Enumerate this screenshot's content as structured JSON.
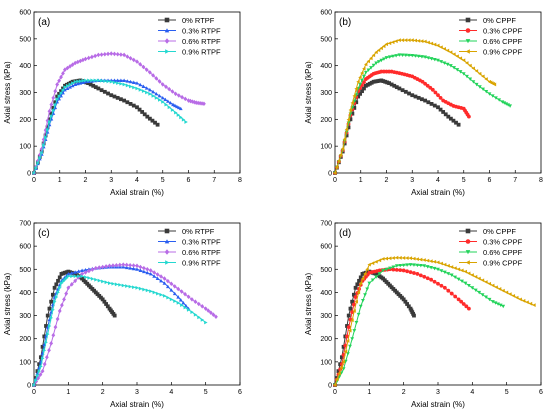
{
  "colors": {
    "black": "#3a3a3a",
    "red": "#ff2b2b",
    "blue": "#2a5ef0",
    "green": "#22d35a",
    "violet": "#b86ce6",
    "cyan": "#25d8d0",
    "gold": "#d9a400"
  },
  "chart_data": [
    {
      "type": "line",
      "label": "(a)",
      "xlabel": "Axial strain (%)",
      "ylabel": "Axial stress (kPa)",
      "xlim": [
        0,
        8
      ],
      "ylim": [
        0,
        600
      ],
      "xticks": [
        0,
        1,
        2,
        3,
        4,
        5,
        6,
        7,
        8
      ],
      "yticks": [
        0,
        100,
        200,
        300,
        400,
        500,
        600
      ],
      "grid": false,
      "legend_position": "top-right",
      "series": [
        {
          "name": "0%   RTPF",
          "color": "#3a3a3a",
          "marker": "square",
          "x": [
            0,
            0.3,
            0.6,
            0.9,
            1.2,
            1.5,
            1.8,
            2.1,
            2.5,
            3.0,
            3.5,
            4.0,
            4.4,
            4.8
          ],
          "y": [
            0,
            80,
            200,
            285,
            325,
            340,
            345,
            335,
            315,
            290,
            270,
            245,
            210,
            180
          ]
        },
        {
          "name": "0.3% RTPF",
          "color": "#2a5ef0",
          "marker": "triangle",
          "x": [
            0,
            0.3,
            0.6,
            0.9,
            1.2,
            1.6,
            2.0,
            2.5,
            3.0,
            3.5,
            4.0,
            4.5,
            5.0,
            5.4,
            5.7
          ],
          "y": [
            0,
            70,
            180,
            265,
            310,
            330,
            340,
            345,
            345,
            345,
            335,
            310,
            280,
            255,
            240
          ]
        },
        {
          "name": "0.6% RTPF",
          "color": "#b86ce6",
          "marker": "diamond",
          "x": [
            0,
            0.3,
            0.6,
            0.9,
            1.2,
            1.6,
            2.0,
            2.5,
            3.0,
            3.5,
            4.0,
            4.5,
            5.0,
            5.5,
            6.0,
            6.3,
            6.6
          ],
          "y": [
            0,
            90,
            230,
            330,
            385,
            410,
            425,
            440,
            445,
            440,
            415,
            375,
            330,
            295,
            270,
            262,
            258
          ]
        },
        {
          "name": "0.9% RTPF",
          "color": "#25d8d0",
          "marker": "triangle-right",
          "x": [
            0,
            0.3,
            0.6,
            0.9,
            1.2,
            1.6,
            2.0,
            2.5,
            3.0,
            3.5,
            4.0,
            4.5,
            5.0,
            5.5,
            5.9
          ],
          "y": [
            0,
            75,
            190,
            275,
            320,
            340,
            345,
            345,
            340,
            330,
            315,
            295,
            265,
            225,
            190
          ]
        }
      ]
    },
    {
      "type": "line",
      "label": "(b)",
      "xlabel": "Axial strain (%)",
      "ylabel": "Axial stress (kPa)",
      "xlim": [
        0,
        8
      ],
      "ylim": [
        0,
        600
      ],
      "xticks": [
        0,
        1,
        2,
        3,
        4,
        5,
        6,
        7,
        8
      ],
      "yticks": [
        0,
        100,
        200,
        300,
        400,
        500,
        600
      ],
      "grid": false,
      "legend_position": "top-right",
      "series": [
        {
          "name": "0%   CPPF",
          "color": "#3a3a3a",
          "marker": "square",
          "x": [
            0,
            0.3,
            0.6,
            0.9,
            1.2,
            1.5,
            1.8,
            2.1,
            2.5,
            3.0,
            3.5,
            4.0,
            4.4,
            4.8
          ],
          "y": [
            0,
            80,
            200,
            285,
            325,
            340,
            345,
            335,
            315,
            290,
            270,
            245,
            210,
            180
          ]
        },
        {
          "name": "0.3% CPPF",
          "color": "#ff2b2b",
          "marker": "circle",
          "x": [
            0,
            0.3,
            0.6,
            0.9,
            1.2,
            1.5,
            1.8,
            2.2,
            2.6,
            3.0,
            3.4,
            3.8,
            4.2,
            4.6,
            5.0,
            5.2
          ],
          "y": [
            0,
            85,
            215,
            305,
            350,
            370,
            378,
            378,
            370,
            360,
            340,
            310,
            270,
            250,
            240,
            210
          ]
        },
        {
          "name": "0.6% CPPF",
          "color": "#22d35a",
          "marker": "triangle-down",
          "x": [
            0,
            0.3,
            0.6,
            0.9,
            1.2,
            1.6,
            2.0,
            2.5,
            3.0,
            3.5,
            4.0,
            4.5,
            5.0,
            5.5,
            6.0,
            6.5,
            6.8
          ],
          "y": [
            0,
            85,
            220,
            315,
            375,
            410,
            430,
            440,
            438,
            432,
            420,
            400,
            370,
            330,
            295,
            265,
            250
          ]
        },
        {
          "name": "0.9% CPPF",
          "color": "#d9a400",
          "marker": "triangle-left",
          "x": [
            0,
            0.3,
            0.6,
            0.9,
            1.2,
            1.6,
            2.0,
            2.5,
            3.0,
            3.5,
            4.0,
            4.5,
            5.0,
            5.5,
            6.0,
            6.2
          ],
          "y": [
            0,
            90,
            235,
            340,
            405,
            450,
            480,
            495,
            495,
            490,
            475,
            450,
            420,
            380,
            340,
            330
          ]
        }
      ]
    },
    {
      "type": "line",
      "label": "(c)",
      "xlabel": "Axial strain (%)",
      "ylabel": "Axial stress (kPa)",
      "xlim": [
        0,
        6
      ],
      "ylim": [
        0,
        700
      ],
      "xticks": [
        0,
        1,
        2,
        3,
        4,
        5,
        6
      ],
      "yticks": [
        0,
        100,
        200,
        300,
        400,
        500,
        600,
        700
      ],
      "grid": false,
      "legend_position": "top-right",
      "series": [
        {
          "name": "0%   RTPF",
          "color": "#3a3a3a",
          "marker": "square",
          "x": [
            0,
            0.2,
            0.4,
            0.6,
            0.8,
            1.0,
            1.2,
            1.4,
            1.6,
            1.8,
            2.0,
            2.2,
            2.35
          ],
          "y": [
            0,
            120,
            300,
            420,
            480,
            490,
            480,
            460,
            430,
            400,
            370,
            330,
            300
          ]
        },
        {
          "name": "0.3% RTPF",
          "color": "#2a5ef0",
          "marker": "triangle",
          "x": [
            0,
            0.2,
            0.4,
            0.6,
            0.8,
            1.0,
            1.4,
            1.8,
            2.2,
            2.6,
            3.0,
            3.4,
            3.8,
            4.2,
            4.5
          ],
          "y": [
            0,
            100,
            250,
            380,
            450,
            480,
            495,
            505,
            510,
            510,
            500,
            480,
            440,
            380,
            330
          ]
        },
        {
          "name": "0.6% RTPF",
          "color": "#b86ce6",
          "marker": "diamond",
          "x": [
            0,
            0.25,
            0.5,
            0.75,
            1.0,
            1.4,
            1.8,
            2.2,
            2.6,
            3.0,
            3.4,
            3.8,
            4.2,
            4.6,
            5.0,
            5.3
          ],
          "y": [
            0,
            60,
            180,
            320,
            420,
            480,
            505,
            515,
            520,
            515,
            495,
            460,
            415,
            370,
            330,
            295
          ]
        },
        {
          "name": "0.9% RTPF",
          "color": "#25d8d0",
          "marker": "triangle-right",
          "x": [
            0,
            0.2,
            0.4,
            0.6,
            0.8,
            1.0,
            1.4,
            1.8,
            2.2,
            2.6,
            3.0,
            3.4,
            3.8,
            4.2,
            4.6,
            5.0
          ],
          "y": [
            0,
            80,
            220,
            360,
            440,
            470,
            470,
            455,
            440,
            430,
            420,
            405,
            385,
            355,
            315,
            270
          ]
        }
      ]
    },
    {
      "type": "line",
      "label": "(d)",
      "xlabel": "Axial strain (%)",
      "ylabel": "Axial stress (kPa)",
      "xlim": [
        0,
        6
      ],
      "ylim": [
        0,
        700
      ],
      "xticks": [
        0,
        1,
        2,
        3,
        4,
        5,
        6
      ],
      "yticks": [
        0,
        100,
        200,
        300,
        400,
        500,
        600,
        700
      ],
      "grid": false,
      "legend_position": "top-right",
      "series": [
        {
          "name": "0%    CPPF",
          "color": "#3a3a3a",
          "marker": "square",
          "x": [
            0,
            0.2,
            0.4,
            0.6,
            0.8,
            1.0,
            1.2,
            1.4,
            1.6,
            1.8,
            2.0,
            2.2,
            2.3
          ],
          "y": [
            0,
            120,
            300,
            420,
            480,
            490,
            480,
            460,
            430,
            400,
            370,
            330,
            300
          ]
        },
        {
          "name": "0.3% CPPF",
          "color": "#ff2b2b",
          "marker": "circle",
          "x": [
            0,
            0.2,
            0.4,
            0.6,
            0.8,
            1.0,
            1.3,
            1.6,
            2.0,
            2.4,
            2.8,
            3.2,
            3.6,
            3.9
          ],
          "y": [
            0,
            90,
            250,
            380,
            450,
            485,
            495,
            500,
            495,
            480,
            455,
            420,
            370,
            330
          ]
        },
        {
          "name": "0.6% CPPF",
          "color": "#22d35a",
          "marker": "triangle-down",
          "x": [
            0,
            0.25,
            0.5,
            0.75,
            1.0,
            1.4,
            1.8,
            2.2,
            2.6,
            3.0,
            3.4,
            3.8,
            4.2,
            4.6,
            4.9
          ],
          "y": [
            0,
            70,
            200,
            340,
            440,
            495,
            515,
            520,
            515,
            500,
            475,
            440,
            400,
            360,
            340
          ]
        },
        {
          "name": "0.9% CPPF",
          "color": "#d9a400",
          "marker": "triangle-left",
          "x": [
            0,
            0.25,
            0.5,
            0.75,
            1.0,
            1.4,
            1.8,
            2.2,
            2.6,
            3.0,
            3.4,
            3.8,
            4.2,
            4.6,
            5.0,
            5.4,
            5.8
          ],
          "y": [
            0,
            100,
            280,
            440,
            520,
            545,
            550,
            548,
            540,
            530,
            510,
            490,
            460,
            430,
            400,
            370,
            345
          ]
        }
      ]
    }
  ]
}
